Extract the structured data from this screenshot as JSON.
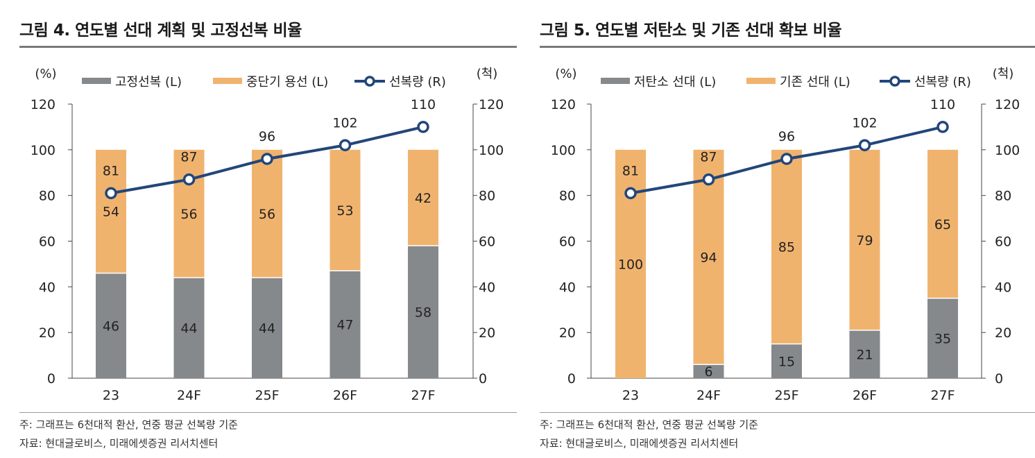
{
  "colors": {
    "gray": "#85898C",
    "orange": "#F0B36E",
    "line": "#22467A",
    "text": "#222222"
  },
  "panels": [
    {
      "title": "그림 4. 연도별 선대 계획 및 고정선복 비율",
      "note": "주: 그래프는 6천대적 환산, 연중 평균 선복량 기준",
      "source": "자료: 현대글로비스, 미래에셋증권 리서치센터",
      "chart_data": {
        "type": "bar",
        "stacked": true,
        "categories": [
          "23",
          "24F",
          "25F",
          "26F",
          "27F"
        ],
        "left_unit": "(%)",
        "right_unit": "(척)",
        "ylim": [
          0,
          120
        ],
        "y2lim": [
          0,
          120
        ],
        "yticks": [
          "0",
          "20",
          "40",
          "60",
          "80",
          "100",
          "120"
        ],
        "series": [
          {
            "name": "고정선복 (L)",
            "axis": "left",
            "values": [
              46,
              44,
              44,
              47,
              58
            ],
            "labels": [
              "46",
              "44",
              "44",
              "47",
              "58"
            ]
          },
          {
            "name": "중단기 용선 (L)",
            "axis": "left",
            "values": [
              54,
              56,
              56,
              53,
              42
            ],
            "labels": [
              "54",
              "56",
              "56",
              "53",
              "42"
            ]
          },
          {
            "name": "선복량 (R)",
            "axis": "right",
            "type": "line",
            "values": [
              81,
              87,
              96,
              102,
              110
            ],
            "labels": [
              "81",
              "87",
              "96",
              "102",
              "110"
            ]
          }
        ]
      }
    },
    {
      "title": "그림 5. 연도별 저탄소 및 기존 선대 확보 비율",
      "note": "주: 그래프는 6천대적 환산, 연중 평균 선복량 기준",
      "source": "자료: 현대글로비스, 미래에셋증권 리서치센터",
      "chart_data": {
        "type": "bar",
        "stacked": true,
        "categories": [
          "23",
          "24F",
          "25F",
          "26F",
          "27F"
        ],
        "left_unit": "(%)",
        "right_unit": "(척)",
        "ylim": [
          0,
          120
        ],
        "y2lim": [
          0,
          120
        ],
        "yticks": [
          "0",
          "20",
          "40",
          "60",
          "80",
          "100",
          "120"
        ],
        "series": [
          {
            "name": "저탄소 선대 (L)",
            "axis": "left",
            "values": [
              0,
              6,
              15,
              21,
              35
            ],
            "labels": [
              "",
              "6",
              "15",
              "21",
              "35"
            ]
          },
          {
            "name": "기존 선대 (L)",
            "axis": "left",
            "values": [
              100,
              94,
              85,
              79,
              65
            ],
            "labels": [
              "100",
              "94",
              "85",
              "79",
              "65"
            ]
          },
          {
            "name": "선복량 (R)",
            "axis": "right",
            "type": "line",
            "values": [
              81,
              87,
              96,
              102,
              110
            ],
            "labels": [
              "81",
              "87",
              "96",
              "102",
              "110"
            ]
          }
        ]
      }
    }
  ]
}
